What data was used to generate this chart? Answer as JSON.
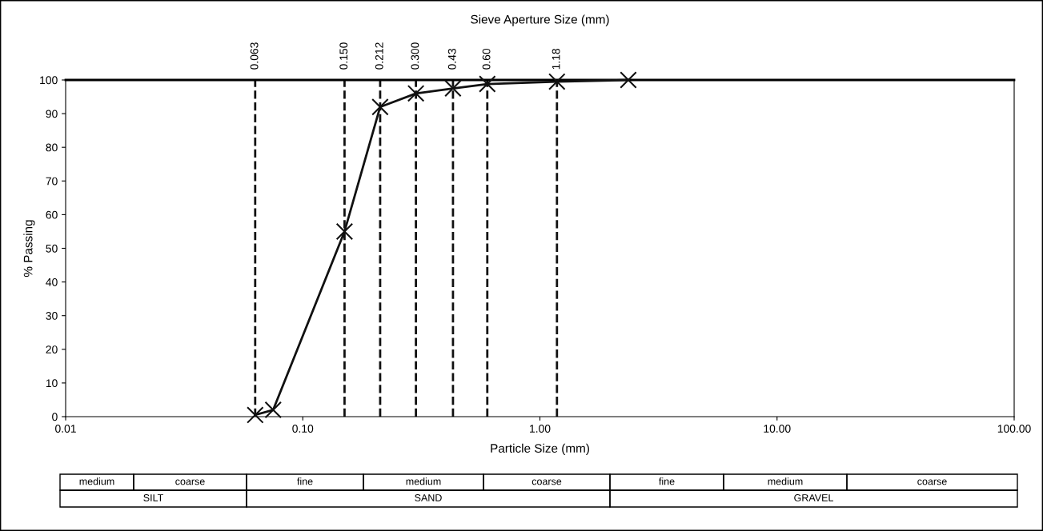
{
  "chart_data": {
    "type": "line",
    "title": "Sieve Aperture Size (mm)",
    "xlabel": "Particle Size (mm)",
    "ylabel": "% Passing",
    "log": "x",
    "grid": false,
    "legend": false,
    "marker": "cross",
    "line_style": "solid",
    "x": [
      0.063,
      0.075,
      0.15,
      0.212,
      0.3,
      0.43,
      0.6,
      1.18,
      2.36
    ],
    "series": [
      {
        "color": "#111111",
        "values": [
          0.5,
          2,
          55,
          92,
          96,
          97.5,
          98.8,
          99.5,
          100
        ]
      }
    ],
    "xlim": [
      0.01,
      100
    ],
    "xticks": [
      {
        "value": 0.01,
        "label": "0.01"
      },
      {
        "value": 0.1,
        "label": "0.10"
      },
      {
        "value": 1,
        "label": "1.00"
      },
      {
        "value": 10,
        "label": "10.00"
      },
      {
        "value": 100,
        "label": "100.00"
      }
    ],
    "ylim": [
      0,
      100
    ],
    "yticks": [
      0,
      10,
      20,
      30,
      40,
      50,
      60,
      70,
      80,
      90,
      100
    ],
    "ref_lines": [
      {
        "axis": "x",
        "value": 0.063,
        "label": "0.063",
        "color": "#111111",
        "line_style": "dashed"
      },
      {
        "axis": "x",
        "value": 0.15,
        "label": "0.150",
        "color": "#111111",
        "line_style": "dashed"
      },
      {
        "axis": "x",
        "value": 0.212,
        "label": "0.212",
        "color": "#111111",
        "line_style": "dashed"
      },
      {
        "axis": "x",
        "value": 0.3,
        "label": "0.300",
        "color": "#111111",
        "line_style": "dashed"
      },
      {
        "axis": "x",
        "value": 0.43,
        "label": "0.43",
        "color": "#111111",
        "line_style": "dashed"
      },
      {
        "axis": "x",
        "value": 0.6,
        "label": "0.60",
        "color": "#111111",
        "line_style": "dashed"
      },
      {
        "axis": "x",
        "value": 1.18,
        "label": "1.18",
        "color": "#111111",
        "line_style": "dashed"
      }
    ],
    "annotations": [
      "medium",
      "coarse",
      "fine",
      "medium",
      "coarse",
      "fine",
      "medium",
      "coarse",
      "SILT",
      "SAND",
      "GRAVEL"
    ]
  }
}
